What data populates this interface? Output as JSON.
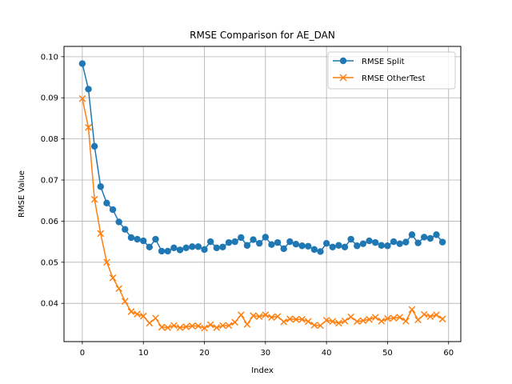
{
  "chart_data": {
    "type": "line",
    "title": "RMSE Comparison for AE_DAN",
    "xlabel": "Index",
    "ylabel": "RMSE Value",
    "xlim": [
      -3,
      62
    ],
    "ylim": [
      0.0307,
      0.1025
    ],
    "xticks": [
      0,
      10,
      20,
      30,
      40,
      50,
      60
    ],
    "yticks": [
      0.04,
      0.05,
      0.06,
      0.07,
      0.08,
      0.09,
      0.1
    ],
    "ytick_labels": [
      "0.04",
      "0.05",
      "0.06",
      "0.07",
      "0.08",
      "0.09",
      "0.10"
    ],
    "grid": true,
    "legend_position": "top-right",
    "x": [
      0,
      1,
      2,
      3,
      4,
      5,
      6,
      7,
      8,
      9,
      10,
      11,
      12,
      13,
      14,
      15,
      16,
      17,
      18,
      19,
      20,
      21,
      22,
      23,
      24,
      25,
      26,
      27,
      28,
      29,
      30,
      31,
      32,
      33,
      34,
      35,
      36,
      37,
      38,
      39,
      40,
      41,
      42,
      43,
      44,
      45,
      46,
      47,
      48,
      49,
      50,
      51,
      52,
      53,
      54,
      55,
      56,
      57,
      58,
      59
    ],
    "series": [
      {
        "name": "RMSE Split",
        "color": "#1f77b4",
        "marker": "circle",
        "values": [
          0.0983,
          0.0921,
          0.0782,
          0.0684,
          0.0644,
          0.0628,
          0.0598,
          0.058,
          0.056,
          0.0556,
          0.0552,
          0.0537,
          0.0556,
          0.0527,
          0.0527,
          0.0535,
          0.053,
          0.0535,
          0.0538,
          0.0538,
          0.0531,
          0.055,
          0.0535,
          0.0537,
          0.0548,
          0.055,
          0.056,
          0.0541,
          0.0555,
          0.0546,
          0.0561,
          0.0543,
          0.0548,
          0.0533,
          0.055,
          0.0544,
          0.054,
          0.0539,
          0.0531,
          0.0526,
          0.0546,
          0.0537,
          0.0541,
          0.0537,
          0.0556,
          0.054,
          0.0545,
          0.0552,
          0.0548,
          0.0541,
          0.054,
          0.055,
          0.0545,
          0.0549,
          0.0567,
          0.0547,
          0.0561,
          0.0558,
          0.0567,
          0.0549
        ]
      },
      {
        "name": "RMSE OtherTest",
        "color": "#ff7f0e",
        "marker": "x",
        "values": [
          0.0898,
          0.0828,
          0.0653,
          0.057,
          0.05,
          0.0462,
          0.0436,
          0.0405,
          0.038,
          0.0374,
          0.0369,
          0.0352,
          0.0364,
          0.0342,
          0.0341,
          0.0346,
          0.0341,
          0.0343,
          0.0345,
          0.0345,
          0.034,
          0.0348,
          0.0341,
          0.0346,
          0.0346,
          0.0354,
          0.0372,
          0.0349,
          0.037,
          0.0368,
          0.0372,
          0.0366,
          0.0368,
          0.0355,
          0.0362,
          0.0361,
          0.0361,
          0.0356,
          0.0347,
          0.0346,
          0.0359,
          0.0356,
          0.0352,
          0.0357,
          0.0367,
          0.0356,
          0.0358,
          0.0361,
          0.0366,
          0.0357,
          0.0363,
          0.0364,
          0.0366,
          0.0357,
          0.0385,
          0.036,
          0.0373,
          0.0368,
          0.0372,
          0.0362
        ]
      }
    ]
  }
}
